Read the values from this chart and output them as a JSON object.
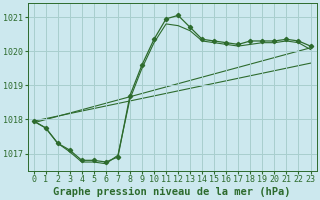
{
  "title": "Graphe pression niveau de la mer (hPa)",
  "bg_color": "#cce8ee",
  "line_color": "#2d6b2d",
  "grid_color": "#a8cece",
  "xlim": [
    -0.5,
    23.5
  ],
  "ylim": [
    1016.5,
    1021.4
  ],
  "yticks": [
    1017,
    1018,
    1019,
    1020,
    1021
  ],
  "xticks": [
    0,
    1,
    2,
    3,
    4,
    5,
    6,
    7,
    8,
    9,
    10,
    11,
    12,
    13,
    14,
    15,
    16,
    17,
    18,
    19,
    20,
    21,
    22,
    23
  ],
  "font_size_title": 7.5,
  "font_size_ticks": 6.0,
  "series1_x": [
    0,
    1,
    2,
    3,
    4,
    5,
    6,
    7,
    8,
    9,
    10,
    11,
    12,
    13,
    14,
    15,
    16,
    17,
    18,
    19,
    20,
    21,
    22,
    23
  ],
  "series1_y": [
    1017.95,
    1017.75,
    1017.3,
    1017.1,
    1016.8,
    1016.8,
    1016.75,
    1016.9,
    1018.7,
    1019.6,
    1020.35,
    1020.95,
    1021.05,
    1020.7,
    1020.35,
    1020.3,
    1020.25,
    1020.2,
    1020.3,
    1020.3,
    1020.3,
    1020.35,
    1020.3,
    1020.15
  ],
  "series2_x": [
    0,
    1,
    2,
    3,
    4,
    5,
    6,
    7,
    8,
    9,
    10,
    11,
    12,
    13,
    14,
    15,
    16,
    17,
    18,
    19,
    20,
    21,
    22,
    23
  ],
  "series2_y": [
    1017.95,
    1017.75,
    1017.3,
    1017.05,
    1016.75,
    1016.75,
    1016.7,
    1016.95,
    1018.6,
    1019.5,
    1020.25,
    1020.8,
    1020.75,
    1020.6,
    1020.3,
    1020.25,
    1020.2,
    1020.15,
    1020.2,
    1020.25,
    1020.25,
    1020.3,
    1020.25,
    1020.05
  ],
  "series3_x": [
    0,
    23
  ],
  "series3_y": [
    1017.95,
    1019.65
  ],
  "series4_x": [
    0,
    23
  ],
  "series4_y": [
    1017.9,
    1020.1
  ]
}
